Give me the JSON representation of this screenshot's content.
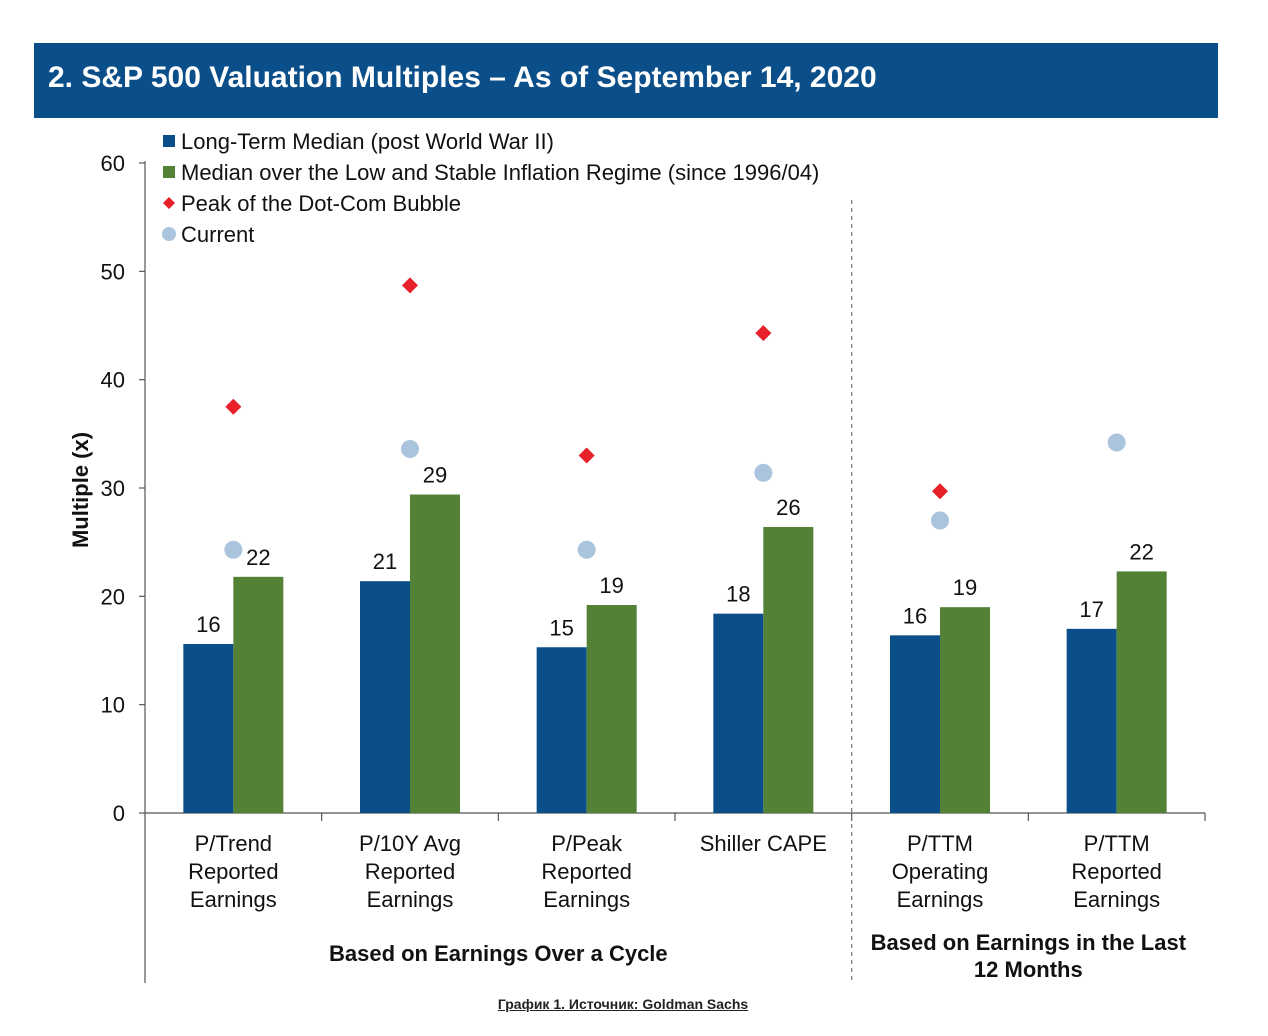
{
  "header": {
    "title": "2. S&P 500 Valuation Multiples – As of September 14, 2020"
  },
  "caption": "График 1. Источник: Goldman Sachs",
  "colors": {
    "banner": "#0b4f8a",
    "long_term_median": "#0b4f8a",
    "low_inflation_median": "#538135",
    "dot_com_peak": "#e8202a",
    "current": "#a9c4dc"
  },
  "chart_data": {
    "type": "bar",
    "ylabel": "Multiple (x)",
    "ylim": [
      0,
      60
    ],
    "yticks": [
      0,
      10,
      20,
      30,
      40,
      50,
      60
    ],
    "grid": false,
    "legend_position": "top-left",
    "categories": [
      [
        "P/Trend",
        "Reported",
        "Earnings"
      ],
      [
        "P/10Y Avg",
        "Reported",
        "Earnings"
      ],
      [
        "P/Peak",
        "Reported",
        "Earnings"
      ],
      [
        "Shiller CAPE"
      ],
      [
        "P/TTM",
        "Operating",
        "Earnings"
      ],
      [
        "P/TTM",
        "Reported",
        "Earnings"
      ]
    ],
    "series": [
      {
        "name": "Long-Term Median (post World War II)",
        "kind": "bar",
        "values": [
          15.6,
          21.4,
          15.3,
          18.4,
          16.4,
          17.0
        ],
        "labels": [
          "16",
          "21",
          "15",
          "18",
          "16",
          "17"
        ]
      },
      {
        "name": "Median over the Low and Stable Inflation Regime (since 1996/04)",
        "kind": "bar",
        "values": [
          21.8,
          29.4,
          19.2,
          26.4,
          19.0,
          22.3
        ],
        "labels": [
          "22",
          "29",
          "19",
          "26",
          "19",
          "22"
        ]
      },
      {
        "name": "Peak of the Dot-Com Bubble",
        "kind": "diamond",
        "values": [
          37.5,
          48.7,
          33.0,
          44.3,
          29.7,
          null
        ]
      },
      {
        "name": "Current",
        "kind": "circle",
        "values": [
          24.3,
          33.6,
          24.3,
          31.4,
          27.0,
          34.2
        ]
      }
    ],
    "groups": [
      {
        "label": [
          "Based on Earnings Over a Cycle"
        ],
        "categories": [
          0,
          1,
          2,
          3
        ]
      },
      {
        "label": [
          "Based on Earnings in the Last",
          "12 Months"
        ],
        "categories": [
          4,
          5
        ]
      }
    ]
  }
}
